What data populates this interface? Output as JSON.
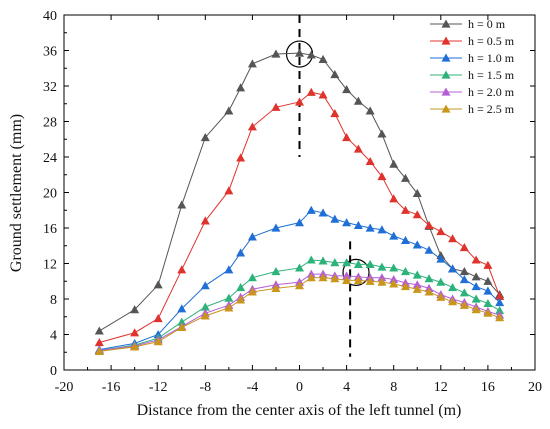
{
  "chart_data": {
    "type": "line",
    "title": "",
    "xlabel": "Distance from the center axis of the left tunnel (m)",
    "ylabel": "Ground settlement (mm)",
    "xlim": [
      -20,
      20
    ],
    "ylim": [
      0,
      40
    ],
    "xticks": [
      -20,
      -16,
      -12,
      -8,
      -4,
      0,
      4,
      8,
      12,
      16,
      20
    ],
    "yticks": [
      0,
      4,
      8,
      12,
      16,
      20,
      24,
      28,
      32,
      36,
      40
    ],
    "grid": false,
    "legend_position": "top-right",
    "x": [
      -17,
      -14,
      -12,
      -10,
      -8,
      -6,
      -5,
      -4,
      -2,
      0,
      1,
      2,
      3,
      4,
      5,
      6,
      7,
      8,
      9,
      10,
      11,
      12,
      13,
      14,
      15,
      16,
      17
    ],
    "series": [
      {
        "name": "h = 0 m",
        "color": "#555555",
        "values": [
          4.4,
          6.8,
          9.6,
          18.6,
          26.2,
          29.2,
          31.8,
          34.5,
          35.6,
          35.7,
          35.5,
          35.0,
          33.3,
          31.6,
          30.3,
          29.2,
          26.6,
          23.2,
          21.6,
          19.9,
          16.2,
          12.9,
          11.4,
          11.1,
          10.5,
          10.0,
          8.5
        ]
      },
      {
        "name": "h = 0.5 m",
        "color": "#e0332e",
        "values": [
          3.1,
          4.2,
          5.8,
          11.3,
          16.8,
          20.2,
          23.9,
          27.4,
          29.6,
          30.2,
          31.3,
          31.0,
          28.9,
          26.2,
          24.9,
          23.5,
          21.8,
          19.3,
          18.0,
          17.5,
          16.3,
          15.6,
          14.8,
          13.8,
          12.4,
          11.8,
          8.3
        ]
      },
      {
        "name": "h = 1.0 m",
        "color": "#1f6fd6",
        "values": [
          2.3,
          3.0,
          4.0,
          6.9,
          9.5,
          11.3,
          13.2,
          15.0,
          16.0,
          16.6,
          18.0,
          17.7,
          17.0,
          16.6,
          16.3,
          16.0,
          15.8,
          15.1,
          14.6,
          14.1,
          13.5,
          12.5,
          11.4,
          10.2,
          9.4,
          8.9,
          7.6
        ]
      },
      {
        "name": "h = 1.5 m",
        "color": "#2db37a",
        "values": [
          2.2,
          2.8,
          3.6,
          5.4,
          7.1,
          8.1,
          9.3,
          10.4,
          11.1,
          11.5,
          12.4,
          12.3,
          12.1,
          12.1,
          11.9,
          11.9,
          11.6,
          11.5,
          11.1,
          10.7,
          10.3,
          9.9,
          9.3,
          8.7,
          8.0,
          7.5,
          6.7
        ]
      },
      {
        "name": "h = 2.0 m",
        "color": "#b45fd6",
        "values": [
          2.2,
          2.7,
          3.4,
          4.9,
          6.4,
          7.3,
          8.2,
          9.1,
          9.6,
          9.9,
          10.8,
          10.8,
          10.6,
          10.6,
          10.5,
          10.4,
          10.4,
          10.2,
          9.8,
          9.6,
          9.2,
          8.5,
          8.0,
          7.6,
          7.1,
          6.6,
          6.2
        ]
      },
      {
        "name": "h = 2.5 m",
        "color": "#c9961c",
        "values": [
          2.1,
          2.6,
          3.2,
          4.8,
          6.1,
          7.0,
          7.9,
          8.8,
          9.2,
          9.5,
          10.4,
          10.4,
          10.3,
          10.1,
          10.1,
          10.0,
          9.9,
          9.7,
          9.4,
          9.1,
          8.8,
          8.2,
          7.7,
          7.3,
          6.8,
          6.4,
          5.9
        ]
      }
    ],
    "annotations": [
      {
        "type": "vertical-dashed-line",
        "x": 0,
        "y_range": [
          24,
          40
        ]
      },
      {
        "type": "vertical-dashed-line",
        "x": 4.3,
        "y_range": [
          1.5,
          14.5
        ]
      },
      {
        "type": "circle",
        "x": 0,
        "y": 35.6
      },
      {
        "type": "circle",
        "x": 4.8,
        "y": 11.0
      }
    ]
  }
}
